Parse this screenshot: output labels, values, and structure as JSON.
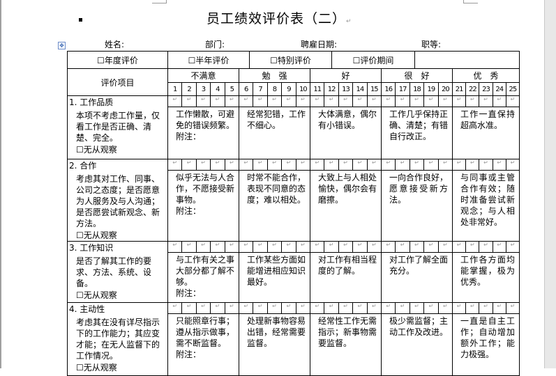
{
  "title": "员工绩效评价表（二）",
  "fields": {
    "name": "姓名:",
    "dept": "部门:",
    "hire": "聘雇日期:",
    "grade": "职等:"
  },
  "periods": [
    "☐年度评价",
    "☐半年评价",
    "☐特别评价",
    "☐评价期间",
    ""
  ],
  "header": {
    "item_label": "评价项目",
    "groups": [
      "不满意",
      "勉　强",
      "好",
      "很　好",
      "优　秀"
    ],
    "scores": [
      "1",
      "2",
      "3",
      "4",
      "5",
      "6",
      "7",
      "8",
      "9",
      "10",
      "11",
      "12",
      "13",
      "14",
      "15",
      "16",
      "17",
      "18",
      "19",
      "20",
      "21",
      "22",
      "23",
      "24",
      "25"
    ]
  },
  "note_label": "附注：",
  "items": [
    {
      "name": "1. 工作品质",
      "desc": "本项不考虑工作量，仅看工作是否正确、清楚、完全。",
      "no_observe": "☐无从观察",
      "levels": [
        "工作懒散，可避免的错误频繁。",
        "经常犯错，工作不细心。",
        "大体满意，偶尔有小错误。",
        "工作几乎保持正确、清楚；有错自行改正。",
        "工作一直保持超高水准。"
      ]
    },
    {
      "name": "2. 合作",
      "desc": "考虑其对工作、同事、公司之态度；是否愿意为人服务及与人沟通；是否愿尝试新观念、新方法。",
      "no_observe": "☐无从观察",
      "levels": [
        "似乎无法与人合作，不愿接受新事物。",
        "时常不能合作，表现不同意的态度；难以相处。",
        "大致上与人相处愉快，偶尔会有磨擦。",
        "一向合作良好，愿意接受新方法。",
        "与同事或主管合作有效；随时准备尝试新观念；与人相处非常好。"
      ]
    },
    {
      "name": "3. 工作知识",
      "desc": "是否了解其工作的要求、方法、系统、设备。",
      "no_observe": "☐无从观察",
      "levels": [
        "与工作有关之事大部分都了解不够。",
        "工作某些方面如能增进相应知识最好。",
        "对工作有相当程度的了解。",
        "对工作了解全面充分。",
        "工作各方面均能掌握，极为优秀。"
      ]
    },
    {
      "name": "4. 主动性",
      "desc": "考虑其在没有详尽指示下的工作能力；其应变才能；在无人监督下的工作情况。",
      "no_observe": "☐无从观察",
      "levels": [
        "只能照章行事；遵从指示做事，需不断监督。",
        "处理新事物容易出错，经常需要监督。",
        "经常性工作无需指示；新事物需要监督。",
        "极少需监督；主动工作及改进。",
        "一直是自主工作；自动增加额外工作；能力极强。"
      ]
    }
  ]
}
